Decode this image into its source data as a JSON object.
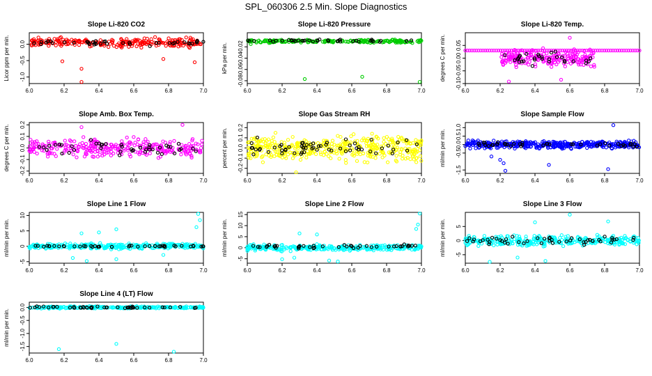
{
  "page_title": "SPL_060306  2.5 Min. Slope Diagnostics",
  "colors": {
    "red": "#ff0000",
    "green": "#00cc00",
    "magenta": "#ff00ff",
    "yellow": "#ffff00",
    "blue": "#0000ff",
    "cyan": "#00ffff",
    "black": "#000000"
  },
  "chart_data": [
    {
      "type": "scatter",
      "title": "Slope Li-820 CO2",
      "ylabel": "Licor ppm per min.",
      "color": "red",
      "xlim": [
        6.0,
        7.0
      ],
      "ylim": [
        -1.2,
        0.35
      ],
      "xticks": [
        "6.0",
        "6.2",
        "6.4",
        "6.6",
        "6.8",
        "7.0"
      ],
      "yticks": [
        {
          "v": -1.0,
          "label": "-1.0"
        },
        {
          "v": -0.5,
          "label": "-0.5"
        },
        {
          "v": 0.0,
          "label": "0.0"
        }
      ],
      "band": {
        "center": 0.05,
        "spread": 0.18,
        "n": 260
      },
      "black_band": {
        "center": 0.05,
        "spread": 0.15,
        "n": 40
      },
      "outliers": [
        [
          6.19,
          -0.52
        ],
        [
          6.3,
          -0.75
        ],
        [
          6.3,
          -1.15
        ],
        [
          6.95,
          -0.55
        ],
        [
          6.77,
          -0.45
        ]
      ]
    },
    {
      "type": "scatter",
      "title": "Slope Li-820 Pressure",
      "ylabel": "kPa per min.",
      "color": "green",
      "xlim": [
        6.0,
        7.0
      ],
      "ylim": [
        -0.085,
        0.005
      ],
      "xticks": [
        "6.0",
        "6.2",
        "6.4",
        "6.6",
        "6.8",
        "7.0"
      ],
      "yticks": [
        {
          "v": -0.08,
          "label": "-0.08"
        },
        {
          "v": -0.06,
          "label": "-0.06"
        },
        {
          "v": -0.04,
          "label": "-0.04"
        },
        {
          "v": -0.02,
          "label": "-0.02"
        }
      ],
      "band": {
        "center": -0.01,
        "spread": 0.004,
        "n": 200
      },
      "black_band": {
        "center": -0.009,
        "spread": 0.003,
        "n": 40
      },
      "outliers": [
        [
          6.33,
          -0.077
        ],
        [
          6.66,
          -0.073
        ],
        [
          6.99,
          -0.082
        ],
        [
          6.02,
          -0.015
        ]
      ]
    },
    {
      "type": "scatter",
      "title": "Slope Li-820 Temp.",
      "ylabel": "degrees C per min.",
      "color": "magenta",
      "xlim": [
        6.0,
        7.0
      ],
      "ylim": [
        -0.1,
        0.1
      ],
      "xticks": [
        "6.0",
        "6.2",
        "6.4",
        "6.6",
        "6.8",
        "7.0"
      ],
      "yticks": [
        {
          "v": -0.1,
          "label": "-0.10"
        },
        {
          "v": -0.05,
          "label": "-0.05"
        },
        {
          "v": 0.0,
          "label": "0.00"
        },
        {
          "v": 0.05,
          "label": "0.05"
        }
      ],
      "band": {
        "center": 0.0,
        "spread": 0.045,
        "n": 200,
        "x0": 6.2,
        "x1": 6.75
      },
      "black_band": {
        "center": 0.0,
        "spread": 0.04,
        "n": 30,
        "x0": 6.22,
        "x1": 6.72
      },
      "flat": {
        "y": 0.03,
        "n": 80,
        "x0": 6.0,
        "x1": 7.0
      },
      "outliers": [
        [
          6.25,
          -0.092
        ],
        [
          6.6,
          0.08
        ],
        [
          6.55,
          -0.085
        ]
      ]
    },
    {
      "type": "scatter",
      "title": "Slope Amb. Box Temp.",
      "ylabel": "degrees C per min.",
      "color": "magenta",
      "xlim": [
        6.0,
        7.0
      ],
      "ylim": [
        -0.22,
        0.22
      ],
      "xticks": [
        "6.0",
        "6.2",
        "6.4",
        "6.6",
        "6.8",
        "7.0"
      ],
      "yticks": [
        {
          "v": -0.2,
          "label": "-0.2"
        },
        {
          "v": -0.1,
          "label": "-0.1"
        },
        {
          "v": 0.0,
          "label": "0.0"
        },
        {
          "v": 0.1,
          "label": "0.1"
        },
        {
          "v": 0.2,
          "label": "0.2"
        }
      ],
      "band": {
        "center": 0.0,
        "spread": 0.12,
        "n": 300
      },
      "black_band": {
        "center": 0.0,
        "spread": 0.1,
        "n": 45
      },
      "outliers": [
        [
          6.88,
          0.2
        ],
        [
          6.3,
          0.18
        ]
      ]
    },
    {
      "type": "scatter",
      "title": "Slope Gas Stream RH",
      "ylabel": "percent per min.",
      "color": "yellow",
      "xlim": [
        6.0,
        7.0
      ],
      "ylim": [
        -0.25,
        0.25
      ],
      "xticks": [
        "6.0",
        "6.2",
        "6.4",
        "6.6",
        "6.8",
        "7.0"
      ],
      "yticks": [
        {
          "v": -0.2,
          "label": "-0.2"
        },
        {
          "v": -0.1,
          "label": "-0.1"
        },
        {
          "v": 0.0,
          "label": "0.0"
        },
        {
          "v": 0.1,
          "label": "0.1"
        },
        {
          "v": 0.2,
          "label": "0.2"
        }
      ],
      "band": {
        "center": 0.0,
        "spread": 0.18,
        "n": 420
      },
      "black_band": {
        "center": 0.0,
        "spread": 0.12,
        "n": 60
      },
      "outliers": [
        [
          6.28,
          -0.24
        ]
      ]
    },
    {
      "type": "scatter",
      "title": "Slope Sample Flow",
      "ylabel": "ml/min per min.",
      "color": "blue",
      "xlim": [
        6.0,
        7.0
      ],
      "ylim": [
        -1.7,
        1.3
      ],
      "xticks": [
        "6.0",
        "6.2",
        "6.4",
        "6.6",
        "6.8",
        "7.0"
      ],
      "yticks": [
        {
          "v": -1.5,
          "label": "-1.5"
        },
        {
          "v": -0.5,
          "label": "-0.5"
        },
        {
          "v": 0.0,
          "label": "0.0"
        },
        {
          "v": 0.5,
          "label": "0.5"
        },
        {
          "v": 1.0,
          "label": "1.0"
        }
      ],
      "band": {
        "center": 0.0,
        "spread": 0.3,
        "n": 400
      },
      "black_band": {
        "center": 0.0,
        "spread": 0.2,
        "n": 40
      },
      "outliers": [
        [
          6.85,
          1.15
        ],
        [
          6.2,
          -0.9
        ],
        [
          6.22,
          -1.1
        ],
        [
          6.23,
          -1.55
        ],
        [
          6.48,
          -1.2
        ],
        [
          6.82,
          -1.45
        ],
        [
          6.15,
          -0.7
        ]
      ]
    },
    {
      "type": "scatter",
      "title": "Slope Line 1 Flow",
      "ylabel": "ml/min per min.",
      "color": "cyan",
      "xlim": [
        6.0,
        7.0
      ],
      "ylim": [
        -5.5,
        11
      ],
      "xticks": [
        "6.0",
        "6.2",
        "6.4",
        "6.6",
        "6.8",
        "7.0"
      ],
      "yticks": [
        {
          "v": -5,
          "label": "-5"
        },
        {
          "v": 0,
          "label": "0"
        },
        {
          "v": 5,
          "label": "5"
        },
        {
          "v": 10,
          "label": "10"
        }
      ],
      "band": {
        "center": 0.0,
        "spread": 1.2,
        "n": 300
      },
      "black_band": {
        "center": 0.0,
        "spread": 0.4,
        "n": 45
      },
      "outliers": [
        [
          6.97,
          10.5
        ],
        [
          6.98,
          8.5
        ],
        [
          6.96,
          6.2
        ],
        [
          6.3,
          4.2
        ],
        [
          6.4,
          4.5
        ],
        [
          6.5,
          5.5
        ],
        [
          6.5,
          -4.2
        ],
        [
          6.33,
          -4.8
        ],
        [
          6.25,
          -3.8
        ],
        [
          6.77,
          -2.8
        ]
      ]
    },
    {
      "type": "scatter",
      "title": "Slope Line 2 Flow",
      "ylabel": "ml/min per min.",
      "color": "cyan",
      "xlim": [
        6.0,
        7.0
      ],
      "ylim": [
        -7,
        16
      ],
      "xticks": [
        "6.0",
        "6.2",
        "6.4",
        "6.6",
        "6.8",
        "7.0"
      ],
      "yticks": [
        {
          "v": -5,
          "label": "-5"
        },
        {
          "v": 0,
          "label": "0"
        },
        {
          "v": 5,
          "label": "5"
        },
        {
          "v": 10,
          "label": "10"
        },
        {
          "v": 15,
          "label": "15"
        }
      ],
      "band": {
        "center": 0.0,
        "spread": 1.8,
        "n": 300
      },
      "black_band": {
        "center": 0.5,
        "spread": 1.2,
        "n": 45
      },
      "outliers": [
        [
          6.99,
          15.5
        ],
        [
          6.98,
          10.5
        ],
        [
          6.97,
          8.5
        ],
        [
          6.3,
          6.5
        ],
        [
          6.4,
          6.0
        ],
        [
          6.47,
          -5.8
        ],
        [
          6.52,
          -6.2
        ],
        [
          6.2,
          -5.2
        ],
        [
          6.27,
          -4.5
        ]
      ]
    },
    {
      "type": "scatter",
      "title": "Slope Line 3 Flow",
      "ylabel": "ml/min per min.",
      "color": "cyan",
      "xlim": [
        6.0,
        7.0
      ],
      "ylim": [
        -8,
        10
      ],
      "xticks": [
        "6.0",
        "6.2",
        "6.4",
        "6.6",
        "6.8",
        "7.0"
      ],
      "yticks": [
        {
          "v": -5,
          "label": "-5"
        },
        {
          "v": 0,
          "label": "0"
        },
        {
          "v": 5,
          "label": "5"
        }
      ],
      "band": {
        "center": 0.0,
        "spread": 2.5,
        "n": 320
      },
      "black_band": {
        "center": 0.0,
        "spread": 2.0,
        "n": 50
      },
      "outliers": [
        [
          6.6,
          9.2
        ],
        [
          6.14,
          -7.5
        ],
        [
          6.46,
          -7.2
        ],
        [
          6.3,
          -6.0
        ],
        [
          6.4,
          6.5
        ],
        [
          6.82,
          6.8
        ]
      ]
    },
    {
      "type": "scatter",
      "title": "Slope Line 4 (LT) Flow",
      "ylabel": "ml/min per min.",
      "color": "cyan",
      "xlim": [
        6.0,
        7.0
      ],
      "ylim": [
        -1.75,
        0.2
      ],
      "xticks": [
        "6.0",
        "6.2",
        "6.4",
        "6.6",
        "6.8",
        "7.0"
      ],
      "yticks": [
        {
          "v": -1.5,
          "label": "-1.5"
        },
        {
          "v": -1.0,
          "label": "-1.0"
        },
        {
          "v": -0.5,
          "label": "-0.5"
        },
        {
          "v": 0.0,
          "label": "0.0"
        }
      ],
      "band": {
        "center": 0.0,
        "spread": 0.06,
        "n": 260
      },
      "black_band": {
        "center": 0.0,
        "spread": 0.05,
        "n": 45
      },
      "outliers": [
        [
          6.17,
          -1.6
        ],
        [
          6.5,
          -1.4
        ],
        [
          6.83,
          -1.7
        ]
      ]
    }
  ]
}
